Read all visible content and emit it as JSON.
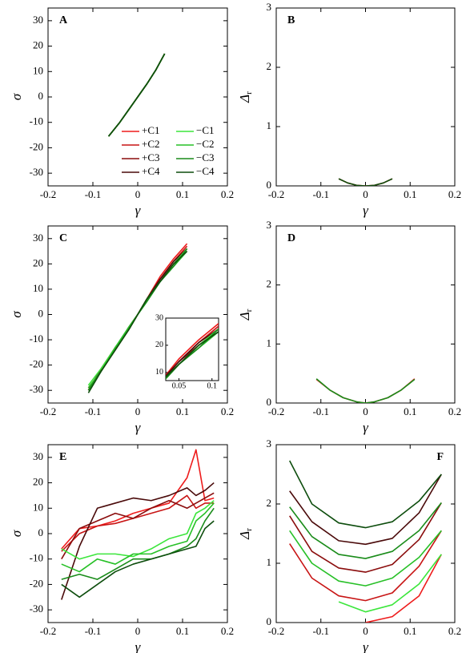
{
  "chart_data": [
    {
      "type": "line",
      "panel_label": "A",
      "x_label": "γ",
      "y_label": "σ",
      "xlim": [
        -0.2,
        0.2
      ],
      "xticks": [
        -0.2,
        -0.1,
        0,
        0.1,
        0.2
      ],
      "ylim": [
        -35,
        35
      ],
      "yticks": [
        -30,
        -20,
        -10,
        0,
        10,
        20,
        30
      ],
      "x": [
        -0.065,
        -0.04,
        -0.02,
        0,
        0.02,
        0.04,
        0.06
      ],
      "series": [
        {
          "name": "+C1",
          "color": "#ee1c1c",
          "values": [
            -15.5,
            -10,
            -5,
            0,
            5,
            10.5,
            17
          ]
        },
        {
          "name": "+C2",
          "color": "#c81414",
          "values": [
            -15.5,
            -10,
            -5,
            0,
            5,
            10.5,
            17
          ]
        },
        {
          "name": "+C3",
          "color": "#8b0d0d",
          "values": [
            -15.5,
            -10,
            -5,
            0,
            5,
            10.5,
            17
          ]
        },
        {
          "name": "+C4",
          "color": "#4a0a0a",
          "values": [
            -15.5,
            -10,
            -5,
            0,
            5,
            10.5,
            17
          ]
        },
        {
          "name": "−C1",
          "color": "#3ce63c",
          "values": [
            -15.5,
            -10,
            -5,
            0,
            5,
            10.5,
            17
          ]
        },
        {
          "name": "−C2",
          "color": "#27c027",
          "values": [
            -15.5,
            -10,
            -5,
            0,
            5,
            10.5,
            17
          ]
        },
        {
          "name": "−C3",
          "color": "#1a8c1a",
          "values": [
            -15.5,
            -10,
            -5,
            0,
            5,
            10.5,
            17
          ]
        },
        {
          "name": "−C4",
          "color": "#0d4d0d",
          "values": [
            -15.5,
            -10,
            -5,
            0,
            5,
            10.5,
            17
          ]
        }
      ]
    },
    {
      "type": "line",
      "panel_label": "B",
      "x_label": "γ",
      "y_label": "Δ",
      "y_label_subscript": "r",
      "xlim": [
        -0.2,
        0.2
      ],
      "xticks": [
        -0.2,
        -0.1,
        0,
        0.1,
        0.2
      ],
      "ylim": [
        0,
        3
      ],
      "yticks": [
        0,
        1,
        2,
        3
      ],
      "x": [
        -0.06,
        -0.04,
        -0.02,
        0,
        0.02,
        0.04,
        0.06
      ],
      "series": [
        {
          "color": "#ee1c1c",
          "values": [
            0.12,
            0.05,
            0.01,
            0,
            0.01,
            0.05,
            0.12
          ]
        },
        {
          "color": "#0d4d0d",
          "values": [
            0.12,
            0.05,
            0.01,
            0,
            0.01,
            0.05,
            0.12
          ]
        }
      ]
    },
    {
      "type": "line",
      "panel_label": "C",
      "x_label": "γ",
      "y_label": "σ",
      "xlim": [
        -0.2,
        0.2
      ],
      "xticks": [
        -0.2,
        -0.1,
        0,
        0.1,
        0.2
      ],
      "ylim": [
        -35,
        35
      ],
      "yticks": [
        -30,
        -20,
        -10,
        0,
        10,
        20,
        30
      ],
      "x": [
        -0.11,
        -0.08,
        -0.05,
        -0.02,
        0,
        0.02,
        0.05,
        0.08,
        0.11
      ],
      "series": [
        {
          "color": "#ee1c1c",
          "values": [
            -29,
            -22,
            -14,
            -6,
            0,
            6,
            15,
            22,
            28
          ]
        },
        {
          "color": "#c81414",
          "values": [
            -30,
            -21,
            -13,
            -6,
            0,
            6,
            14,
            21,
            27
          ]
        },
        {
          "color": "#8b0d0d",
          "values": [
            -29,
            -22,
            -14,
            -5,
            0,
            6,
            14,
            20,
            26
          ]
        },
        {
          "color": "#4a0a0a",
          "values": [
            -30,
            -21,
            -14,
            -6,
            0,
            6,
            14,
            21,
            26
          ]
        },
        {
          "color": "#3ce63c",
          "values": [
            -28,
            -21,
            -13,
            -6,
            0,
            6,
            13,
            20,
            26
          ]
        },
        {
          "color": "#27c027",
          "values": [
            -29,
            -22,
            -13,
            -5,
            0,
            5,
            13,
            19,
            25
          ]
        },
        {
          "color": "#1a8c1a",
          "values": [
            -30,
            -22,
            -14,
            -6,
            0,
            5,
            13,
            19,
            26
          ]
        },
        {
          "color": "#0d4d0d",
          "values": [
            -31,
            -22,
            -14,
            -6,
            0,
            6,
            13,
            20,
            25
          ]
        }
      ],
      "inset": {
        "xlim": [
          0.03,
          0.11
        ],
        "xticks": [
          0.05,
          0.1
        ],
        "ylim": [
          7,
          30
        ],
        "yticks": [
          10,
          20,
          30
        ]
      }
    },
    {
      "type": "line",
      "panel_label": "D",
      "x_label": "γ",
      "y_label": "Δ",
      "y_label_subscript": "r",
      "xlim": [
        -0.2,
        0.2
      ],
      "xticks": [
        -0.2,
        -0.1,
        0,
        0.1,
        0.2
      ],
      "ylim": [
        0,
        3
      ],
      "yticks": [
        0,
        1,
        2,
        3
      ],
      "x": [
        -0.11,
        -0.08,
        -0.05,
        -0.02,
        0,
        0.02,
        0.05,
        0.08,
        0.11
      ],
      "series": [
        {
          "color": "#ee1c1c",
          "values": [
            0.4,
            0.22,
            0.09,
            0.02,
            0,
            0.02,
            0.09,
            0.22,
            0.41
          ]
        },
        {
          "color": "#1a8c1a",
          "values": [
            0.41,
            0.22,
            0.09,
            0.02,
            0,
            0.02,
            0.09,
            0.22,
            0.4
          ]
        }
      ]
    },
    {
      "type": "line",
      "panel_label": "E",
      "x_label": "γ",
      "y_label": "σ",
      "xlim": [
        -0.2,
        0.2
      ],
      "xticks": [
        -0.2,
        -0.1,
        0,
        0.1,
        0.2
      ],
      "ylim": [
        -35,
        35
      ],
      "yticks": [
        -30,
        -20,
        -10,
        0,
        10,
        20,
        30
      ],
      "x": [
        -0.17,
        -0.13,
        -0.09,
        -0.05,
        -0.01,
        0.03,
        0.07,
        0.11,
        0.13,
        0.15,
        0.17
      ],
      "series": [
        {
          "color": "#ee1c1c",
          "values": [
            -6,
            2,
            3,
            5,
            8,
            10,
            12,
            22,
            33,
            13,
            14
          ]
        },
        {
          "color": "#c81414",
          "values": [
            -7,
            0,
            3,
            4,
            6,
            8,
            10,
            15,
            10,
            12,
            12
          ]
        },
        {
          "color": "#8b0d0d",
          "values": [
            -10,
            2,
            5,
            8,
            6,
            10,
            13,
            10,
            12,
            14,
            16
          ]
        },
        {
          "color": "#4a0a0a",
          "values": [
            -26,
            -5,
            10,
            12,
            14,
            13,
            15,
            18,
            15,
            17,
            20
          ]
        },
        {
          "color": "#3ce63c",
          "values": [
            -6,
            -10,
            -8,
            -8,
            -9,
            -6,
            -2,
            0,
            8,
            10,
            13
          ]
        },
        {
          "color": "#27c027",
          "values": [
            -12,
            -15,
            -10,
            -12,
            -8,
            -8,
            -5,
            -3,
            5,
            8,
            12
          ]
        },
        {
          "color": "#1a8c1a",
          "values": [
            -18,
            -16,
            -18,
            -14,
            -10,
            -10,
            -8,
            -5,
            -2,
            5,
            10
          ]
        },
        {
          "color": "#0d4d0d",
          "values": [
            -20,
            -25,
            -20,
            -15,
            -12,
            -10,
            -8,
            -6,
            -5,
            2,
            5
          ]
        }
      ]
    },
    {
      "type": "line",
      "panel_label": "F",
      "panel_label_corner": "top right",
      "x_label": "γ",
      "y_label": "Δ",
      "y_label_subscript": "r",
      "xlim": [
        -0.2,
        0.2
      ],
      "xticks": [
        -0.2,
        -0.1,
        0,
        0.1,
        0.2
      ],
      "ylim": [
        0,
        3
      ],
      "yticks": [
        0,
        1,
        2,
        3
      ],
      "x": [
        -0.17,
        -0.12,
        -0.06,
        0,
        0.06,
        0.12,
        0.17
      ],
      "series": [
        {
          "color": "#ee1c1c",
          "values": [
            null,
            null,
            null,
            0,
            0.1,
            0.45,
            1.15
          ]
        },
        {
          "color": "#3ce63c",
          "values": [
            null,
            null,
            0.35,
            0.18,
            0.3,
            0.65,
            1.15
          ]
        },
        {
          "color": "#c81414",
          "values": [
            1.33,
            0.75,
            0.45,
            0.37,
            0.5,
            0.95,
            1.55
          ]
        },
        {
          "color": "#27c027",
          "values": [
            1.55,
            1.0,
            0.7,
            0.62,
            0.75,
            1.1,
            1.55
          ]
        },
        {
          "color": "#8b0d0d",
          "values": [
            1.8,
            1.2,
            0.92,
            0.85,
            0.98,
            1.4,
            2.02
          ]
        },
        {
          "color": "#1a8c1a",
          "values": [
            1.95,
            1.45,
            1.15,
            1.08,
            1.2,
            1.55,
            2.02
          ]
        },
        {
          "color": "#4a0a0a",
          "values": [
            2.22,
            1.7,
            1.38,
            1.32,
            1.42,
            1.85,
            2.5
          ]
        },
        {
          "color": "#0d4d0d",
          "values": [
            2.73,
            2.0,
            1.68,
            1.6,
            1.7,
            2.05,
            2.5
          ]
        }
      ]
    }
  ]
}
